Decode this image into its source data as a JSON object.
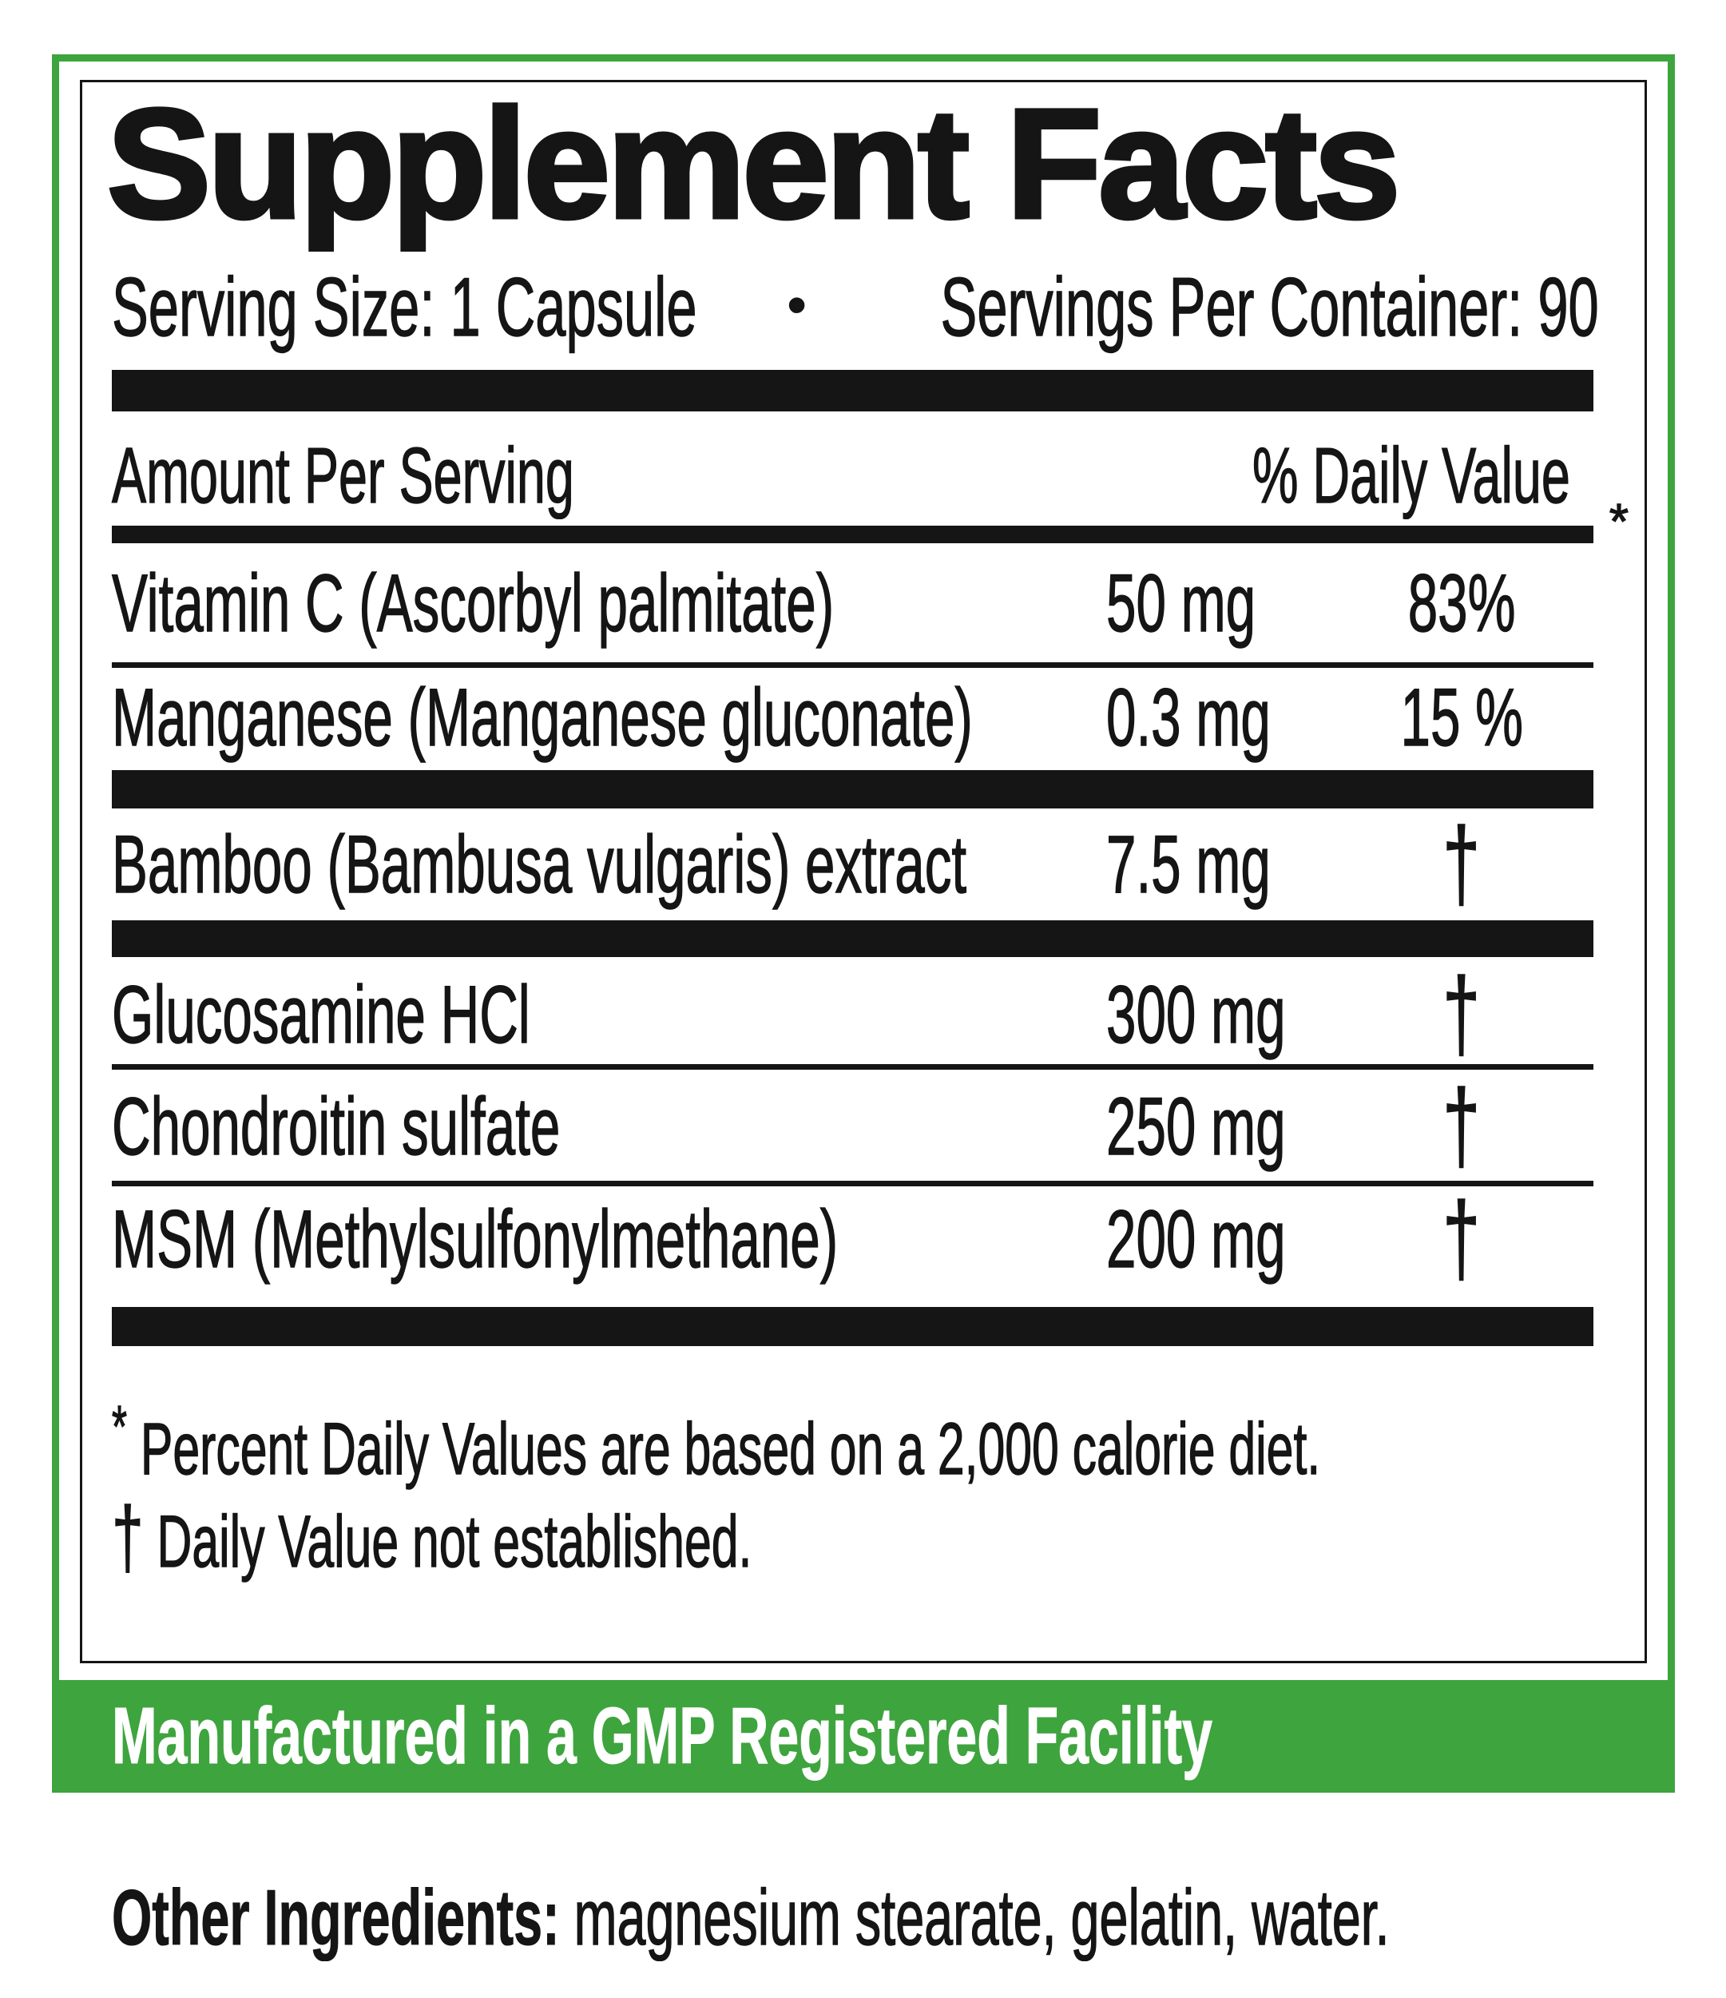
{
  "label": {
    "title": "Supplement Facts",
    "serving": {
      "size": "Serving Size: 1 Capsule",
      "bullet": "•",
      "per_container": "Servings Per Container: 90"
    },
    "header": {
      "amount_col": "Amount Per Serving",
      "dv_col": "% Daily Value",
      "dv_asterisk": "*"
    },
    "rows": [
      {
        "name": "Vitamin C (Ascorbyl palmitate)",
        "amount": "50 mg",
        "dv": "83%"
      },
      {
        "name": "Manganese (Manganese gluconate)",
        "amount": "0.3 mg",
        "dv": "15 %"
      },
      {
        "name": "Bamboo (Bambusa vulgaris) extract",
        "amount": "7.5 mg",
        "dv": "†"
      },
      {
        "name": "Glucosamine HCl",
        "amount": "300 mg",
        "dv": "†"
      },
      {
        "name": "Chondroitin sulfate",
        "amount": "250 mg",
        "dv": "†"
      },
      {
        "name": "MSM (Methylsulfonylmethane)",
        "amount": "200 mg",
        "dv": "†"
      }
    ],
    "footnotes": {
      "daily_value_symbol": "*",
      "daily_value_text": "Percent Daily Values are based on a 2,000 calorie diet.",
      "not_established_symbol": "†",
      "not_established_text": "Daily Value not established."
    },
    "banner_text": "Manufactured in a GMP Registered Facility",
    "other_ingredients": {
      "label": "Other Ingredients:",
      "text": " magnesium stearate, gelatin, water."
    },
    "colors": {
      "accent_green": "#3EA43E",
      "ink": "#151515"
    }
  }
}
